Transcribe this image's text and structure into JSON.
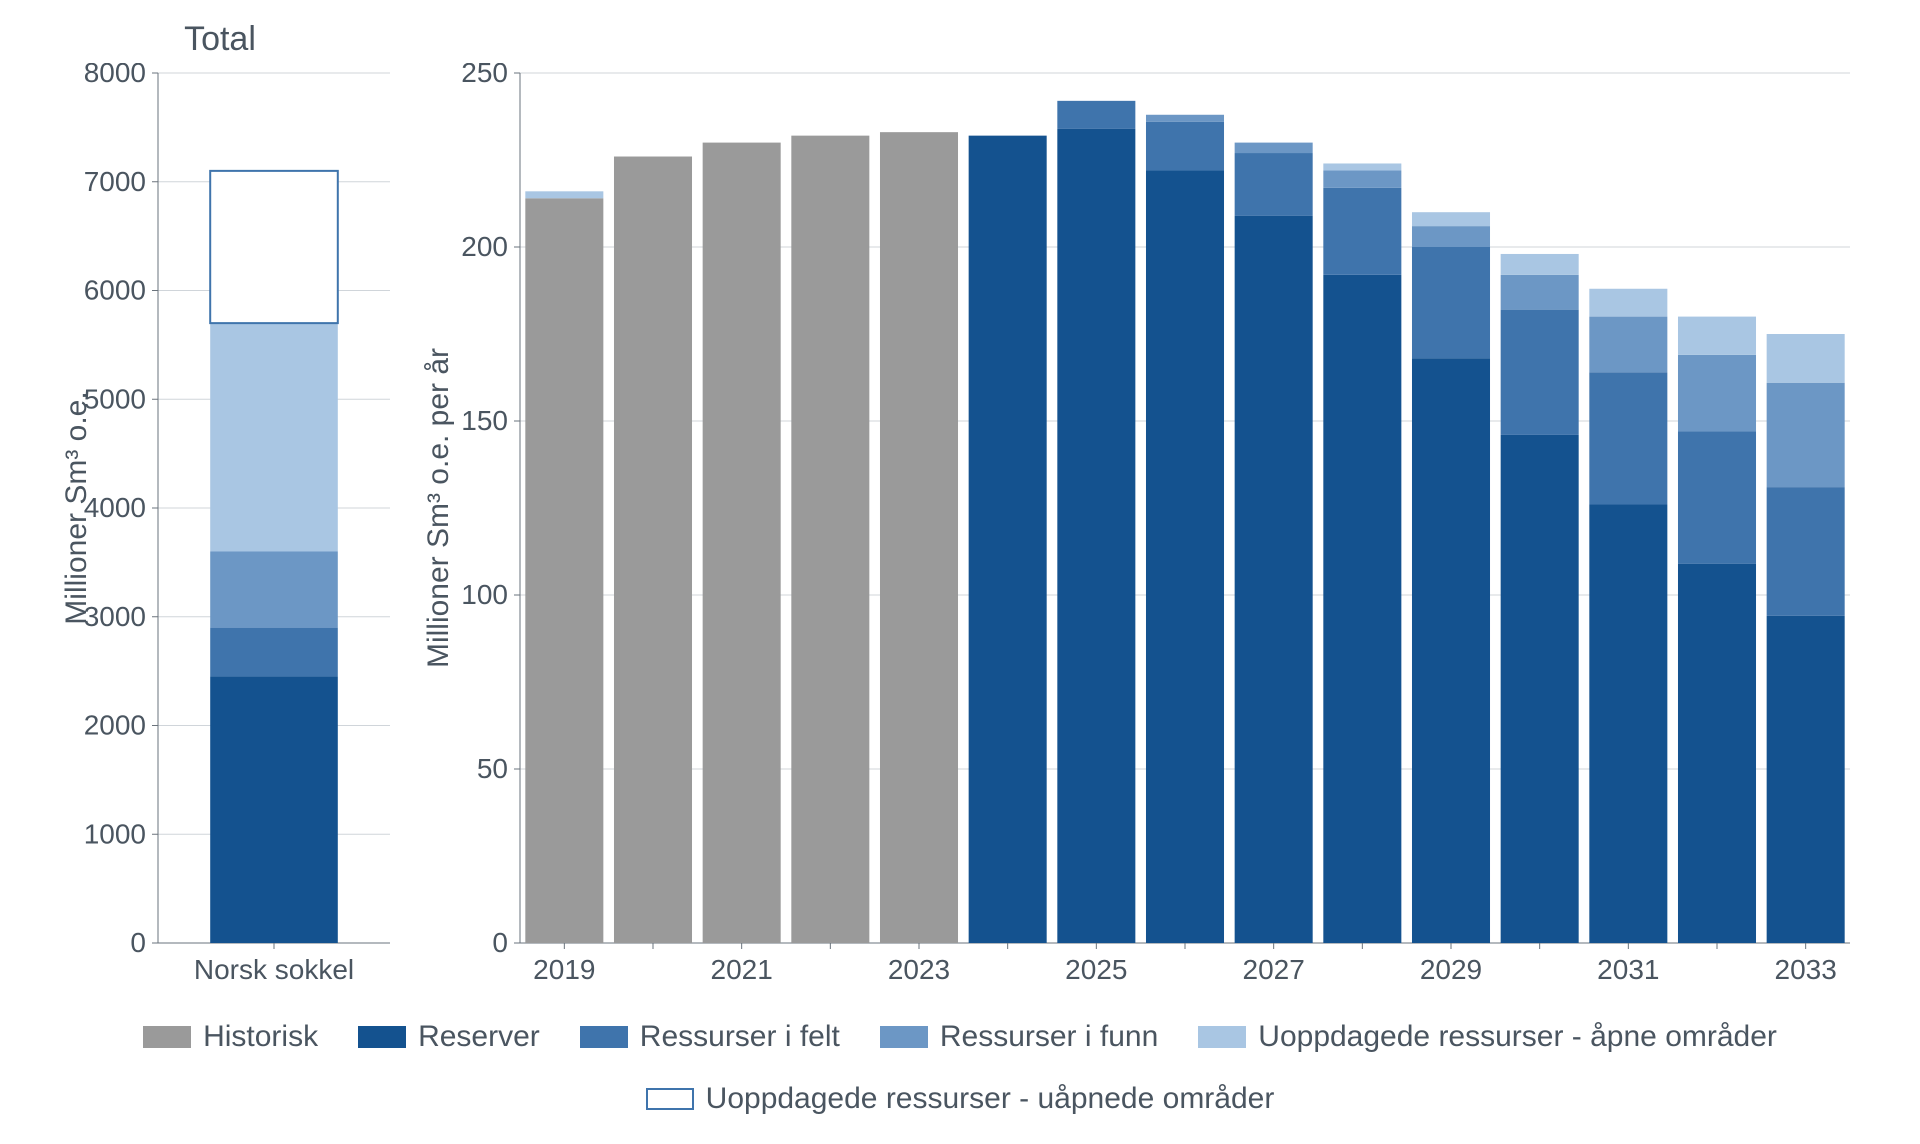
{
  "colors": {
    "historisk": "#9a9a9a",
    "reserver": "#14528f",
    "ressurser_felt": "#3f74ac",
    "ressurser_funn": "#6c97c5",
    "uoppdagede_apne": "#a9c6e3",
    "uoppdagede_uapnede_stroke": "#3f74ac",
    "uoppdagede_uapnede_fill": "#ffffff",
    "grid": "#d0d5da",
    "axis": "#6a737c",
    "text": "#4a5560",
    "background": "#ffffff"
  },
  "typography": {
    "axis_label_fontsize_pt": 26,
    "tick_fontsize_pt": 26,
    "title_fontsize_pt": 26,
    "legend_fontsize_pt": 22,
    "font_family": "Segoe UI, Helvetica Neue, Arial, sans-serif",
    "font_weight": 300
  },
  "left_chart": {
    "type": "stacked-bar",
    "title": "Total",
    "ylabel": "Millioner Sm³ o.e.",
    "ylim": [
      0,
      8000
    ],
    "ytick_step": 1000,
    "yticks": [
      0,
      1000,
      2000,
      3000,
      4000,
      5000,
      6000,
      7000,
      8000
    ],
    "categories": [
      "Norsk sokkel"
    ],
    "bar_width": 0.55,
    "series_order": [
      "reserver",
      "ressurser_felt",
      "ressurser_funn",
      "uoppdagede_apne",
      "uoppdagede_uapnede"
    ],
    "values": {
      "Norsk sokkel": {
        "reserver": 2450,
        "ressurser_felt": 450,
        "ressurser_funn": 700,
        "uoppdagede_apne": 2100,
        "uoppdagede_uapnede": 1400
      }
    }
  },
  "right_chart": {
    "type": "stacked-bar",
    "ylabel": "Millioner Sm³ o.e. per år",
    "ylim": [
      0,
      250
    ],
    "ytick_step": 50,
    "yticks": [
      0,
      50,
      100,
      150,
      200,
      250
    ],
    "years": [
      2019,
      2020,
      2021,
      2022,
      2023,
      2024,
      2025,
      2026,
      2027,
      2028,
      2029,
      2030,
      2031,
      2032,
      2033
    ],
    "xticklabels": [
      "2019",
      "",
      "2021",
      "",
      "2023",
      "",
      "2025",
      "",
      "2027",
      "",
      "2029",
      "",
      "2031",
      "",
      "2033"
    ],
    "bar_width": 0.88,
    "series_order": [
      "historisk",
      "reserver",
      "ressurser_felt",
      "ressurser_funn",
      "uoppdagede_apne"
    ],
    "values": {
      "2019": {
        "historisk": 214,
        "reserver": 0,
        "ressurser_felt": 0,
        "ressurser_funn": 0,
        "uoppdagede_apne": 2
      },
      "2020": {
        "historisk": 226,
        "reserver": 0,
        "ressurser_felt": 0,
        "ressurser_funn": 0,
        "uoppdagede_apne": 0
      },
      "2021": {
        "historisk": 230,
        "reserver": 0,
        "ressurser_felt": 0,
        "ressurser_funn": 0,
        "uoppdagede_apne": 0
      },
      "2022": {
        "historisk": 232,
        "reserver": 0,
        "ressurser_felt": 0,
        "ressurser_funn": 0,
        "uoppdagede_apne": 0
      },
      "2023": {
        "historisk": 233,
        "reserver": 0,
        "ressurser_felt": 0,
        "ressurser_funn": 0,
        "uoppdagede_apne": 0
      },
      "2024": {
        "historisk": 0,
        "reserver": 232,
        "ressurser_felt": 0,
        "ressurser_funn": 0,
        "uoppdagede_apne": 0
      },
      "2025": {
        "historisk": 0,
        "reserver": 234,
        "ressurser_felt": 8,
        "ressurser_funn": 0,
        "uoppdagede_apne": 0
      },
      "2026": {
        "historisk": 0,
        "reserver": 222,
        "ressurser_felt": 14,
        "ressurser_funn": 2,
        "uoppdagede_apne": 0
      },
      "2027": {
        "historisk": 0,
        "reserver": 209,
        "ressurser_felt": 18,
        "ressurser_funn": 3,
        "uoppdagede_apne": 0
      },
      "2028": {
        "historisk": 0,
        "reserver": 192,
        "ressurser_felt": 25,
        "ressurser_funn": 5,
        "uoppdagede_apne": 2
      },
      "2029": {
        "historisk": 0,
        "reserver": 168,
        "ressurser_felt": 32,
        "ressurser_funn": 6,
        "uoppdagede_apne": 4
      },
      "2030": {
        "historisk": 0,
        "reserver": 146,
        "ressurser_felt": 36,
        "ressurser_funn": 10,
        "uoppdagede_apne": 6
      },
      "2031": {
        "historisk": 0,
        "reserver": 126,
        "ressurser_felt": 38,
        "ressurser_funn": 16,
        "uoppdagede_apne": 8
      },
      "2032": {
        "historisk": 0,
        "reserver": 109,
        "ressurser_felt": 38,
        "ressurser_funn": 22,
        "uoppdagede_apne": 11
      },
      "2033": {
        "historisk": 0,
        "reserver": 94,
        "ressurser_felt": 37,
        "ressurser_funn": 30,
        "uoppdagede_apne": 14
      }
    }
  },
  "legend": {
    "items": [
      {
        "key": "historisk",
        "label": "Historisk"
      },
      {
        "key": "reserver",
        "label": "Reserver"
      },
      {
        "key": "ressurser_felt",
        "label": "Ressurser i felt"
      },
      {
        "key": "ressurser_funn",
        "label": "Ressurser i funn"
      },
      {
        "key": "uoppdagede_apne",
        "label": "Uoppdagede ressurser - åpne områder"
      },
      {
        "key": "uoppdagede_uapnede",
        "label": "Uoppdagede ressurser - uåpnede områder"
      }
    ]
  }
}
